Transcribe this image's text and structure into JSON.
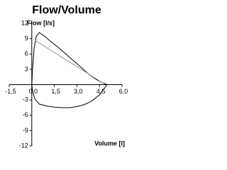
{
  "chart_data": {
    "type": "line",
    "title": "Flow/Volume",
    "ylabel": "Flow [l/s]",
    "xlabel": "Volume [l]",
    "xlim": [
      -1.5,
      6.0
    ],
    "ylim": [
      -12,
      12
    ],
    "xticks": [
      {
        "value": -1.5,
        "label": "-1,5"
      },
      {
        "value": 0,
        "label": "0,0"
      },
      {
        "value": 1.5,
        "label": "1,5"
      },
      {
        "value": 3,
        "label": "3,0"
      },
      {
        "value": 4.5,
        "label": "4,5"
      },
      {
        "value": 6,
        "label": "6,0"
      }
    ],
    "yticks": [
      12,
      9,
      6,
      3,
      -3,
      -6,
      -9,
      -12
    ],
    "series": [
      {
        "color": "#000000",
        "x": [
          0,
          0.05,
          0.15,
          0.3,
          0.5,
          0.8,
          1.2,
          1.8,
          2.5,
          3.2,
          3.8,
          4.3,
          4.7,
          5.0,
          4.8,
          4.5,
          4.0,
          3.5,
          3.0,
          2.5,
          2.0,
          1.5,
          1.0,
          0.5,
          0.2,
          0.05,
          0
        ],
        "values": [
          0,
          3,
          7,
          9.5,
          10.2,
          9.6,
          8.6,
          7.2,
          5.4,
          3.6,
          2.0,
          1.0,
          0.4,
          0,
          -0.8,
          -2.0,
          -3.2,
          -3.9,
          -4.3,
          -4.5,
          -4.5,
          -4.4,
          -4.2,
          -3.8,
          -2.8,
          -1.2,
          0
        ]
      },
      {
        "color": "#999999",
        "x": [
          0.2,
          4.8
        ],
        "values": [
          8.7,
          0.2
        ]
      }
    ]
  }
}
